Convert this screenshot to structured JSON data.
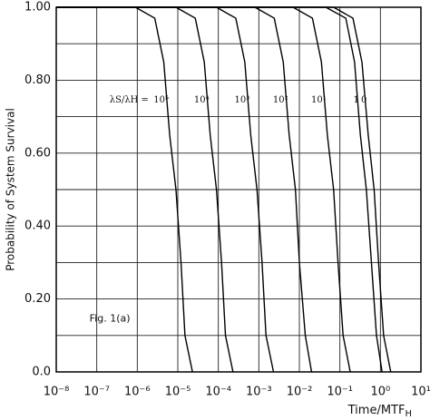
{
  "chart_data": {
    "type": "line",
    "xlabel": "Time/MTF",
    "xlabel_sub": "H",
    "ylabel": "Probability of System Survival",
    "annotation": "λS/λH =",
    "figure_label": "Fig. 1(a)",
    "log_x": true,
    "grid": true,
    "xlim": [
      1e-08,
      10
    ],
    "ylim": [
      0,
      1
    ],
    "xticks": [
      {
        "value": 1e-08,
        "label": "10⁻⁸"
      },
      {
        "value": 1e-07,
        "label": "10⁻⁷"
      },
      {
        "value": 1e-06,
        "label": "10⁻⁶"
      },
      {
        "value": 1e-05,
        "label": "10⁻⁵"
      },
      {
        "value": 0.0001,
        "label": "10⁻⁴"
      },
      {
        "value": 0.001,
        "label": "10⁻³"
      },
      {
        "value": 0.01,
        "label": "10⁻²"
      },
      {
        "value": 0.1,
        "label": "10⁻¹"
      },
      {
        "value": 1,
        "label": "10⁰"
      },
      {
        "value": 10,
        "label": "10¹"
      }
    ],
    "yticks": [
      {
        "value": 0,
        "label": "0.0"
      },
      {
        "value": 0.2,
        "label": "0.20"
      },
      {
        "value": 0.4,
        "label": "0.40"
      },
      {
        "value": 0.6,
        "label": "0.60"
      },
      {
        "value": 0.8,
        "label": "0.80"
      },
      {
        "value": 1,
        "label": "1.00"
      }
    ],
    "y_minor_grid": [
      0.1,
      0.3,
      0.5,
      0.7,
      0.9
    ],
    "color": "#000000",
    "series": [
      {
        "name": "10⁵",
        "x": [
          1e-08,
          9e-07,
          2.7e-06,
          4.5e-06,
          6.3e-06,
          9e-06,
          1.2e-05,
          1.5e-05,
          2.3e-05
        ],
        "values": [
          1,
          1,
          0.97,
          0.85,
          0.65,
          0.5,
          0.3,
          0.1,
          0
        ]
      },
      {
        "name": "10⁴",
        "x": [
          1e-08,
          9e-06,
          2.7e-05,
          4.5e-05,
          6.3e-05,
          9e-05,
          0.00012,
          0.00015,
          0.00023
        ],
        "values": [
          1,
          1,
          0.97,
          0.85,
          0.65,
          0.5,
          0.3,
          0.1,
          0
        ]
      },
      {
        "name": "10³",
        "x": [
          1e-08,
          9e-05,
          0.00027,
          0.00045,
          0.00063,
          0.0009,
          0.0012,
          0.0015,
          0.0023
        ],
        "values": [
          1,
          1,
          0.97,
          0.85,
          0.65,
          0.5,
          0.3,
          0.1,
          0
        ]
      },
      {
        "name": "10²",
        "x": [
          1e-08,
          0.0008,
          0.0024,
          0.004,
          0.0056,
          0.008,
          0.01,
          0.014,
          0.02
        ],
        "values": [
          1,
          1,
          0.97,
          0.85,
          0.65,
          0.5,
          0.3,
          0.1,
          0
        ]
      },
      {
        "name": "10¹",
        "x": [
          1e-08,
          0.007,
          0.021,
          0.035,
          0.049,
          0.07,
          0.09,
          0.12,
          0.18
        ],
        "values": [
          1,
          1,
          0.97,
          0.85,
          0.65,
          0.5,
          0.3,
          0.1,
          0
        ]
      },
      {
        "name": "1",
        "x": [
          1e-08,
          0.045,
          0.14,
          0.23,
          0.32,
          0.45,
          0.6,
          0.8,
          1.1
        ],
        "values": [
          1,
          1,
          0.97,
          0.85,
          0.65,
          0.5,
          0.3,
          0.1,
          0
        ]
      },
      {
        "name": "0",
        "x": [
          1e-08,
          0.07,
          0.21,
          0.35,
          0.5,
          0.7,
          0.9,
          1.2,
          1.8
        ],
        "values": [
          1,
          1,
          0.97,
          0.85,
          0.65,
          0.5,
          0.3,
          0.1,
          0
        ]
      }
    ]
  }
}
